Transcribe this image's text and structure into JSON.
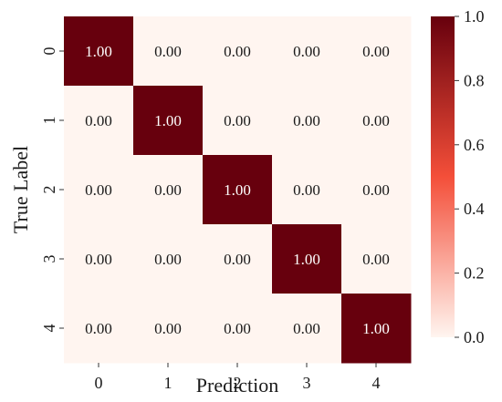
{
  "chart_data": {
    "type": "heatmap",
    "title": "",
    "xlabel": "Prediction",
    "ylabel": "True Label",
    "x_categories": [
      "0",
      "1",
      "2",
      "3",
      "4"
    ],
    "y_categories": [
      "0",
      "1",
      "2",
      "3",
      "4"
    ],
    "values": [
      [
        1.0,
        0.0,
        0.0,
        0.0,
        0.0
      ],
      [
        0.0,
        1.0,
        0.0,
        0.0,
        0.0
      ],
      [
        0.0,
        0.0,
        1.0,
        0.0,
        0.0
      ],
      [
        0.0,
        0.0,
        0.0,
        1.0,
        0.0
      ],
      [
        0.0,
        0.0,
        0.0,
        0.0,
        1.0
      ]
    ],
    "cell_labels": [
      [
        "1.00",
        "0.00",
        "0.00",
        "0.00",
        "0.00"
      ],
      [
        "0.00",
        "1.00",
        "0.00",
        "0.00",
        "0.00"
      ],
      [
        "0.00",
        "0.00",
        "1.00",
        "0.00",
        "0.00"
      ],
      [
        "0.00",
        "0.00",
        "0.00",
        "1.00",
        "0.00"
      ],
      [
        "0.00",
        "0.00",
        "0.00",
        "0.00",
        "1.00"
      ]
    ],
    "colormap": "Reds",
    "color_low": "#fff5f0",
    "color_high": "#67000d",
    "colorbar": {
      "range": [
        0.0,
        1.0
      ],
      "tick_values": [
        0.0,
        0.2,
        0.4,
        0.6,
        0.8,
        1.0
      ],
      "tick_labels": [
        "0.0",
        "0.2",
        "0.4",
        "0.6",
        "0.8",
        "1.0"
      ]
    },
    "grid": false,
    "legend": "colorbar-right"
  }
}
